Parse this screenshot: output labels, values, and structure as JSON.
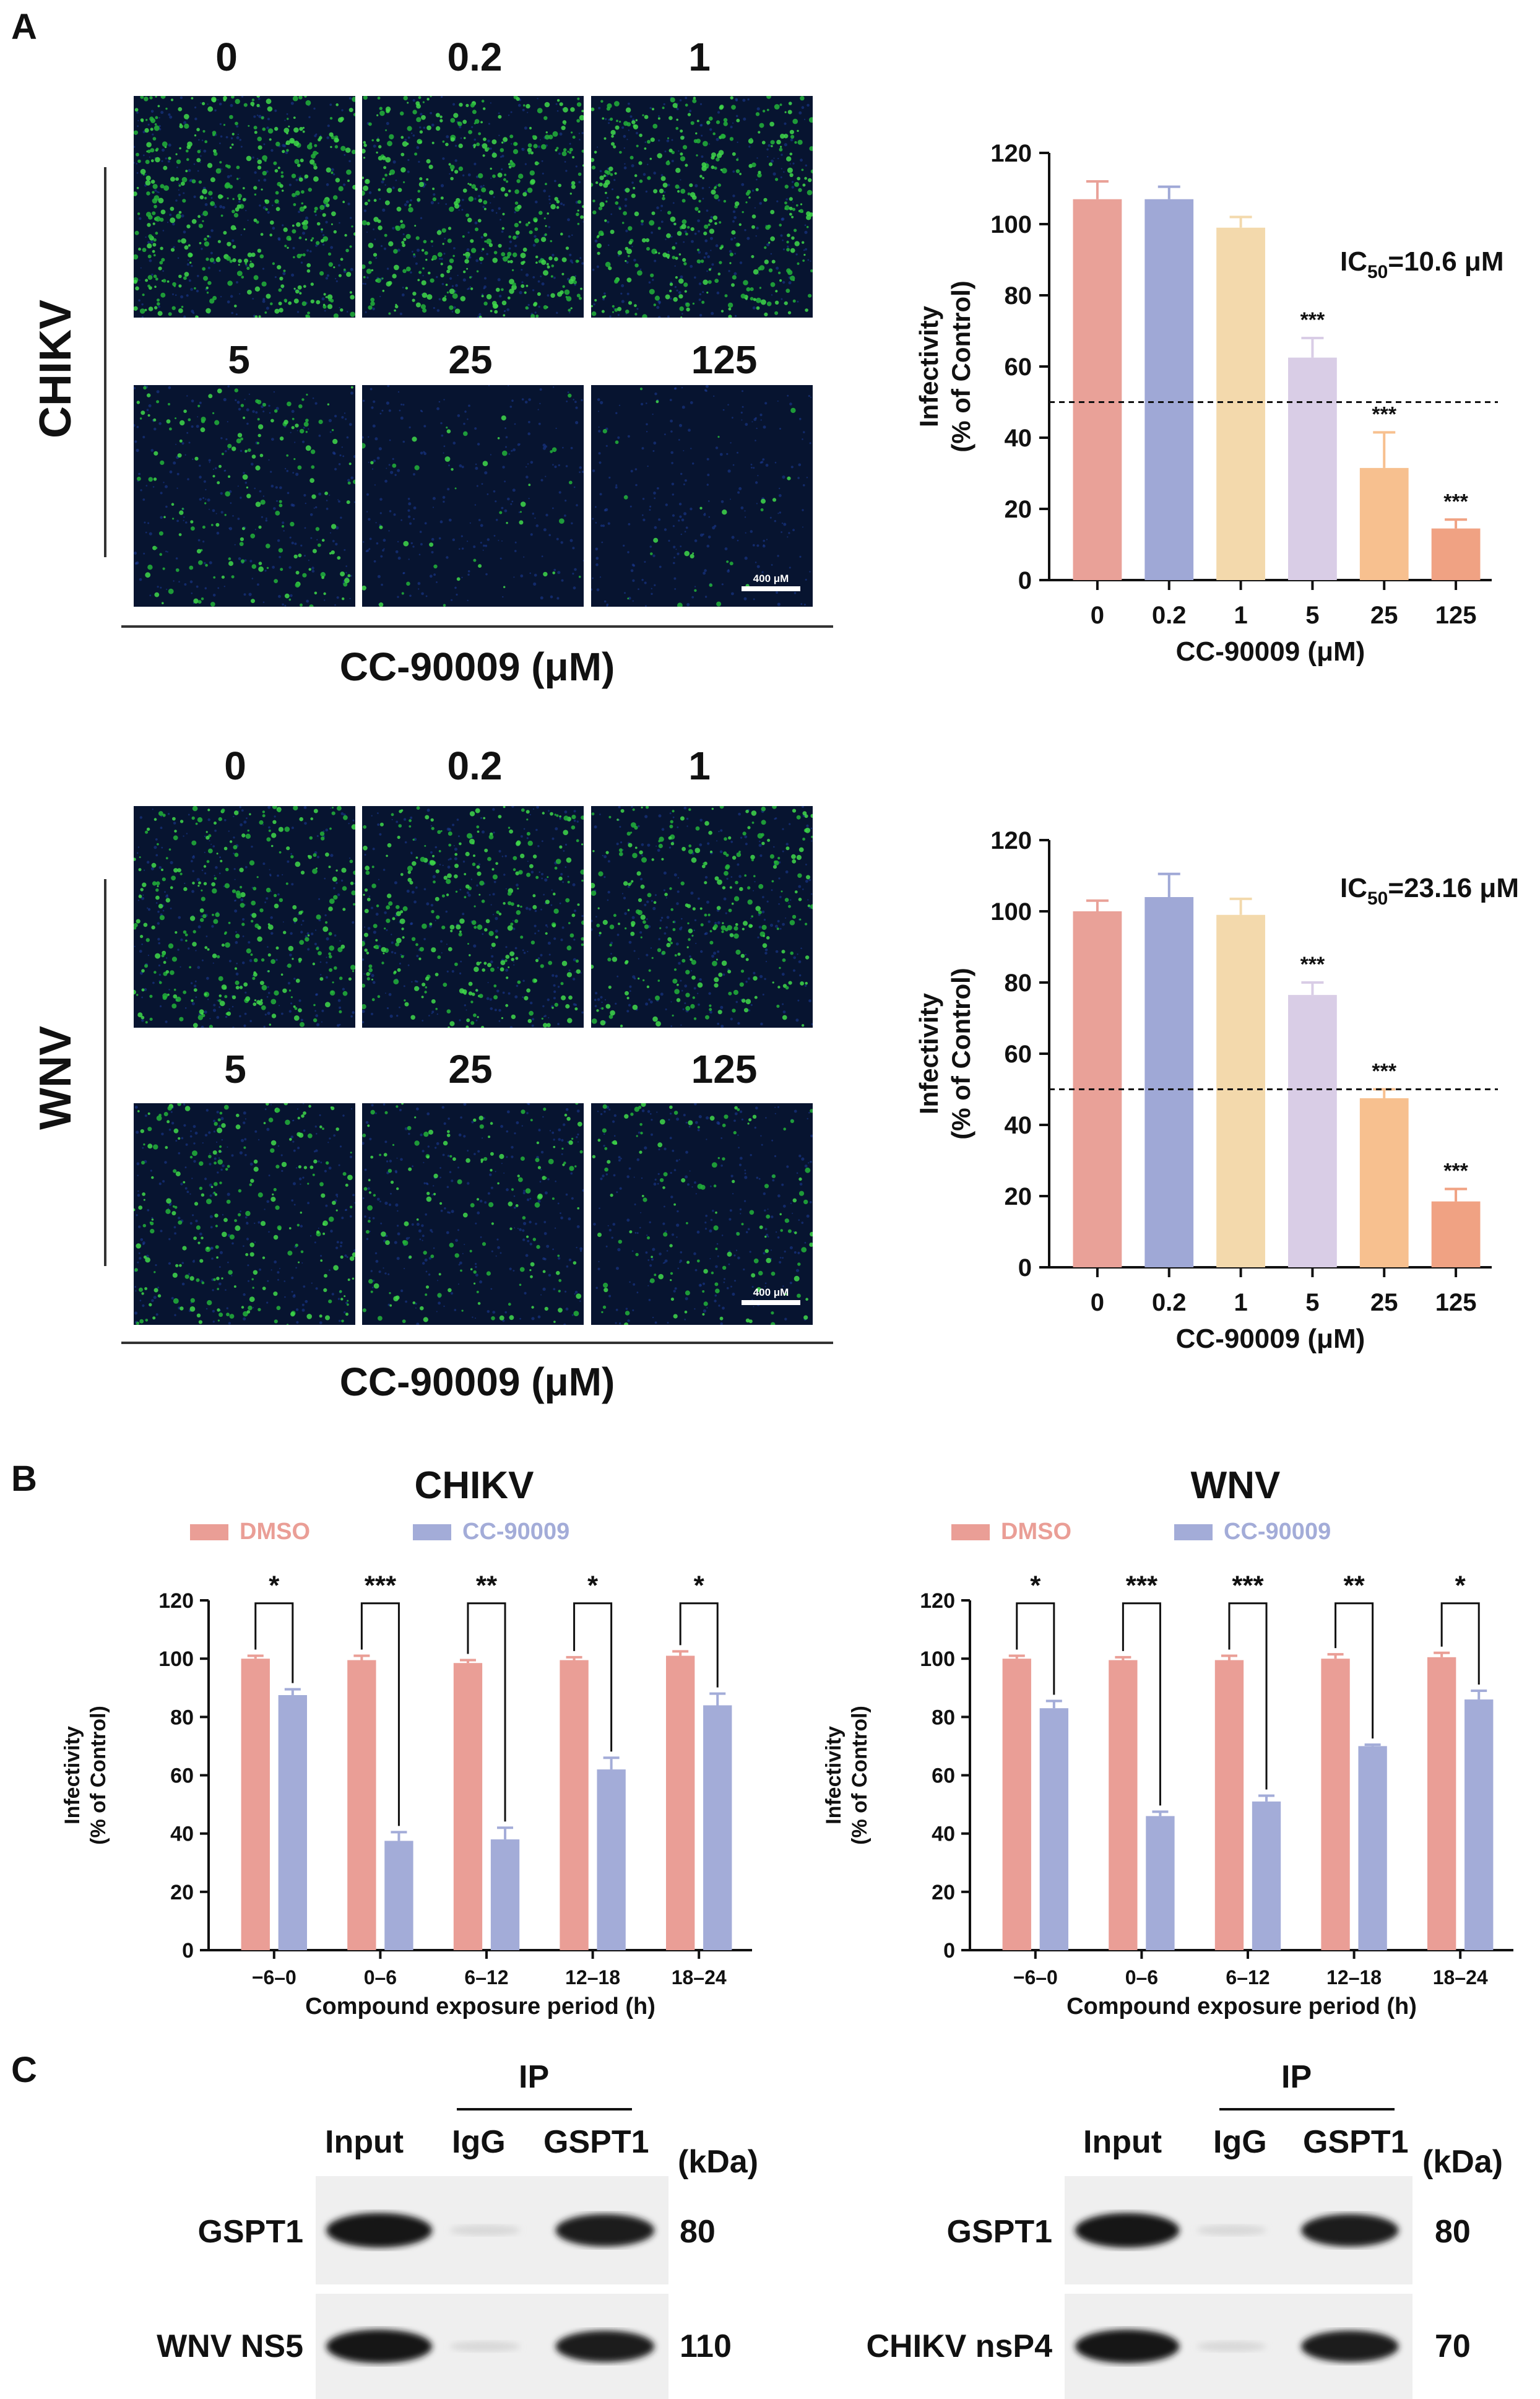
{
  "panels": {
    "a": "A",
    "b": "B",
    "c": "C"
  },
  "micrographs": [
    {
      "virus": "CHIKV",
      "xlabel": "CC-90009 (μM)",
      "scale_bar": "400 μM",
      "concentrations": [
        "0",
        "0.2",
        "1",
        "5",
        "25",
        "125"
      ],
      "green_density": [
        0.9,
        0.85,
        0.8,
        0.35,
        0.08,
        0.05
      ]
    },
    {
      "virus": "WNV",
      "xlabel": "CC-90009 (μM)",
      "scale_bar": "400 μM",
      "concentrations": [
        "0",
        "0.2",
        "1",
        "5",
        "25",
        "125"
      ],
      "green_density": [
        0.6,
        0.6,
        0.55,
        0.45,
        0.3,
        0.25
      ]
    }
  ],
  "colors": {
    "c0": "#e9a198",
    "c1": "#9fa8d6",
    "c2": "#f3d9ac",
    "c3": "#d9cde6",
    "c4": "#f7c08f",
    "c5": "#f0a283",
    "dmso": "#ea9e96",
    "cc": "#a3acd8",
    "axis": "#111111"
  },
  "chart_data": [
    {
      "type": "bar",
      "categories": [
        "0",
        "0.2",
        "1",
        "5",
        "25",
        "125"
      ],
      "values": [
        107,
        107,
        99,
        62.5,
        31.5,
        14.5
      ],
      "errors": [
        5,
        3.5,
        3,
        5.5,
        10,
        2.5
      ],
      "significance": [
        "",
        "",
        "",
        "***",
        "***",
        "***"
      ],
      "xlabel": "CC-90009 (μM)",
      "ylabel_line1": "Infectivity",
      "ylabel_line2": "(% of Control)",
      "ylim": [
        0,
        120
      ],
      "yticks": [
        "0",
        "20",
        "40",
        "60",
        "80",
        "100",
        "120"
      ],
      "ic50_prefix": "IC",
      "ic50_sub": "50",
      "ic50_value": "=10.6 μM",
      "threshold": 50
    },
    {
      "type": "bar",
      "categories": [
        "0",
        "0.2",
        "1",
        "5",
        "25",
        "125"
      ],
      "values": [
        100,
        104,
        99,
        76.5,
        47.5,
        18.5
      ],
      "errors": [
        3,
        6.5,
        4.5,
        3.5,
        2.5,
        3.5
      ],
      "significance": [
        "",
        "",
        "",
        "***",
        "***",
        "***"
      ],
      "xlabel": "CC-90009 (μM)",
      "ylabel_line1": "Infectivity",
      "ylabel_line2": "(% of Control)",
      "ylim": [
        0,
        120
      ],
      "yticks": [
        "0",
        "20",
        "40",
        "60",
        "80",
        "100",
        "120"
      ],
      "ic50_prefix": "IC",
      "ic50_sub": "50",
      "ic50_value": "=23.16 μM",
      "threshold": 50
    },
    {
      "type": "bar",
      "title": "CHIKV",
      "legend": [
        "DMSO",
        "CC-90009"
      ],
      "categories": [
        "−6–0",
        "0–6",
        "6–12",
        "12–18",
        "18–24"
      ],
      "series": [
        {
          "name": "DMSO",
          "values": [
            100,
            99.5,
            98.5,
            99.5,
            101
          ],
          "errors": [
            1,
            1.5,
            1,
            1,
            1.5
          ]
        },
        {
          "name": "CC-90009",
          "values": [
            87.5,
            37.5,
            38,
            62,
            84
          ],
          "errors": [
            2,
            3,
            4,
            4,
            4
          ]
        }
      ],
      "significance": [
        "*",
        "***",
        "**",
        "*",
        "*"
      ],
      "xlabel": "Compound exposure period (h)",
      "ylabel_line1": "Infectivity",
      "ylabel_line2": "(% of Control)",
      "ylim": [
        0,
        120
      ],
      "yticks": [
        "0",
        "20",
        "40",
        "60",
        "80",
        "100",
        "120"
      ]
    },
    {
      "type": "bar",
      "title": "WNV",
      "legend": [
        "DMSO",
        "CC-90009"
      ],
      "categories": [
        "−6–0",
        "0–6",
        "6–12",
        "12–18",
        "18–24"
      ],
      "series": [
        {
          "name": "DMSO",
          "values": [
            100,
            99.5,
            99.5,
            100,
            100.5
          ],
          "errors": [
            1,
            1,
            1.5,
            1.5,
            1.5
          ]
        },
        {
          "name": "CC-90009",
          "values": [
            83,
            46,
            51,
            70,
            86
          ],
          "errors": [
            2.5,
            1.5,
            2,
            0.5,
            3
          ]
        }
      ],
      "significance": [
        "*",
        "***",
        "***",
        "**",
        "*"
      ],
      "xlabel": "Compound exposure period (h)",
      "ylabel_line1": "Infectivity",
      "ylabel_line2": "(% of Control)",
      "ylim": [
        0,
        120
      ],
      "yticks": [
        "0",
        "20",
        "40",
        "60",
        "80",
        "100",
        "120"
      ]
    }
  ],
  "blots": [
    {
      "ip": "IP",
      "columns": [
        "Input",
        "IgG",
        "GSPT1"
      ],
      "kda": "(kDa)",
      "rows": [
        {
          "label": "GSPT1",
          "size": "80"
        },
        {
          "label": "WNV NS5",
          "size": "110"
        }
      ]
    },
    {
      "ip": "IP",
      "columns": [
        "Input",
        "IgG",
        "GSPT1"
      ],
      "kda": "(kDa)",
      "rows": [
        {
          "label": "GSPT1",
          "size": "80"
        },
        {
          "label": "CHIKV nsP4",
          "size": "70"
        }
      ]
    }
  ]
}
